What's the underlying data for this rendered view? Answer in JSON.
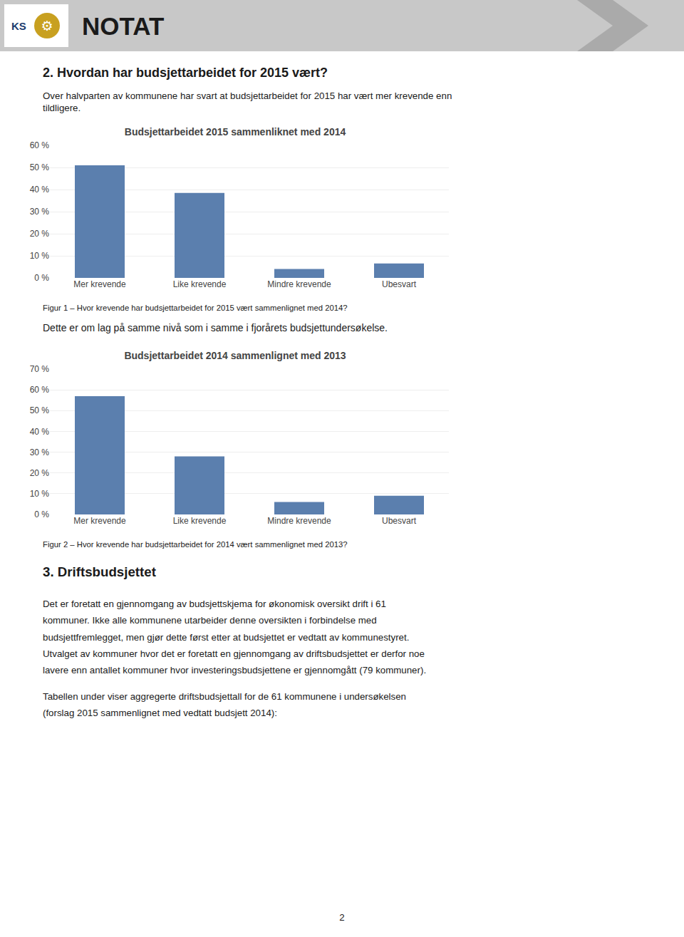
{
  "page_texts": {
    "header": "NOTAT",
    "logo": "KS",
    "logo_icon": "⚙",
    "section2_title": "2.  Hvordan har budsjettarbeidet for 2015 vært?",
    "section2_body": [
      "Over halvparten av kommunene har svart at budsjettarbeidet for 2015 har vært mer krevende enn",
      "tildligere."
    ],
    "between_text": "Dette er om lag på samme nivå som i samme i fjorårets budsjettundersøkelse.",
    "section3_title": "3.  Driftsbudsjettet",
    "section3_body1": "Det er foretatt en gjennomgang av budsjettskjema for økonomisk oversikt drift i 61\nkommuner. Ikke alle kommunene utarbeider denne oversikten i forbindelse med\nbudsjettfremlegget, men gjør dette først etter at budsjettet er vedtatt av kommunestyret.\nUtvalget av kommuner hvor det er foretatt en gjennomgang av driftsbudsjettet er derfor noe\nlavere enn antallet kommuner hvor investeringsbudsjettene er gjennomgått (79 kommuner).",
    "section3_body2": "Tabellen under viser aggregerte driftsbudsjettall for de 61 kommunene i undersøkelsen\n(forslag 2015 sammenlignet med vedtatt budsjett 2014):",
    "page_number": "2"
  },
  "chart_data": [
    {
      "type": "bar",
      "title": "Budsjettarbeidet 2015 sammenliknet med 2014",
      "categories": [
        "Mer krevende",
        "Like krevende",
        "Mindre krevende",
        "Ubesvart"
      ],
      "values": [
        0.51,
        0.385,
        0.04,
        0.065
      ],
      "color": "#5b7fae",
      "ylim": [
        0,
        0.6
      ],
      "yticks": [
        {
          "value": 0.0,
          "label": "0 %"
        },
        {
          "value": 0.1,
          "label": "10 %"
        },
        {
          "value": 0.2,
          "label": "20 %"
        },
        {
          "value": 0.3,
          "label": "30 %"
        },
        {
          "value": 0.4,
          "label": "40 %"
        },
        {
          "value": 0.5,
          "label": "50 %"
        },
        {
          "value": 0.6,
          "label": "60 %"
        }
      ],
      "grid": true,
      "annotations": [
        "Figur 1 – Hvor krevende har budsjettarbeidet for  2015 vært sammenlignet med 2014?"
      ]
    },
    {
      "type": "bar",
      "title": "Budsjettarbeidet 2014 sammenlignet med 2013",
      "categories": [
        "Mer krevende",
        "Like krevende",
        "Mindre krevende",
        "Ubesvart"
      ],
      "values": [
        0.57,
        0.28,
        0.06,
        0.09
      ],
      "color": "#5b7fae",
      "ylim": [
        0,
        0.7
      ],
      "yticks": [
        {
          "value": 0.0,
          "label": "0 %"
        },
        {
          "value": 0.1,
          "label": "10 %"
        },
        {
          "value": 0.2,
          "label": "20 %"
        },
        {
          "value": 0.3,
          "label": "30 %"
        },
        {
          "value": 0.4,
          "label": "40 %"
        },
        {
          "value": 0.5,
          "label": "50 %"
        },
        {
          "value": 0.6,
          "label": "60 %"
        },
        {
          "value": 0.7,
          "label": "70 %"
        }
      ],
      "grid": true,
      "annotations": [
        "Figur 2 – Hvor krevende har budsjettarbeidet for  2014 vært sammenlignet med 2013?"
      ]
    }
  ]
}
